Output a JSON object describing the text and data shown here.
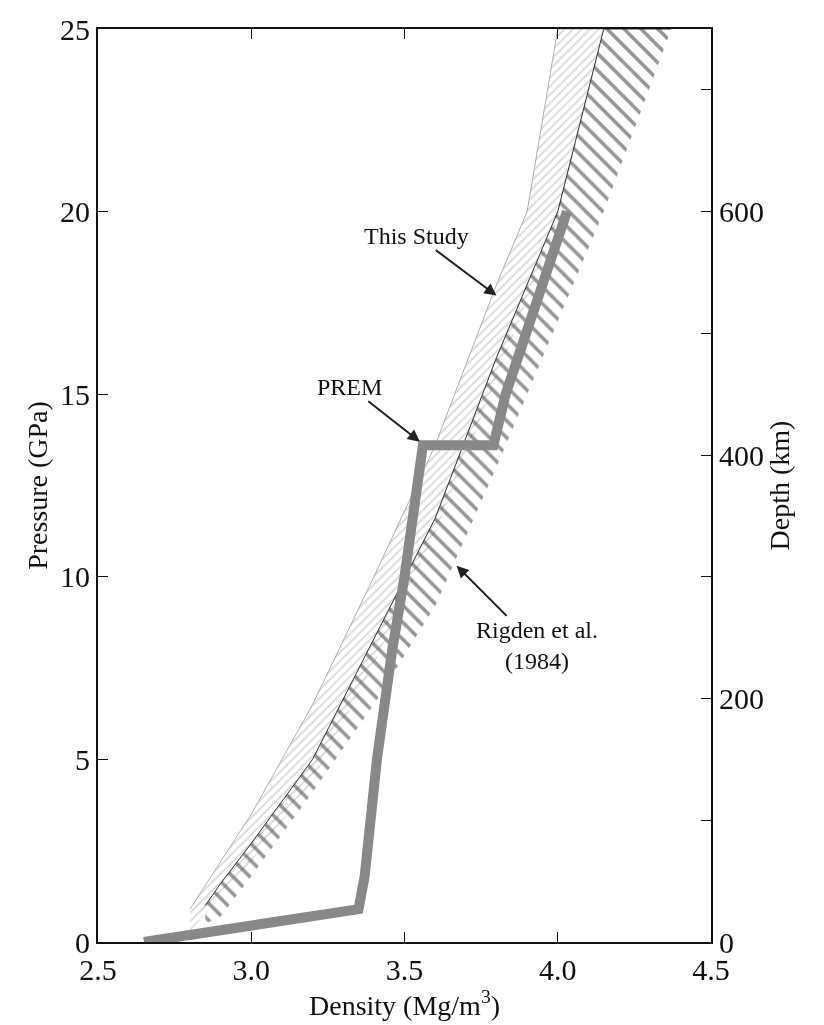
{
  "chart_data": {
    "type": "line",
    "xlabel": "Density (Mg/m$^{3}$)",
    "ylabel": "Pressure (GPa)",
    "y2label": "Depth (km)",
    "xlim": [
      2.5,
      4.5
    ],
    "xticks": [
      2.5,
      {
        "value": 3.0,
        "label": "3.0"
      },
      3.5,
      {
        "value": 4.0,
        "label": "4.0"
      },
      4.5
    ],
    "ylim": [
      0,
      25
    ],
    "yticks": [
      0,
      5,
      10,
      15,
      20,
      25
    ],
    "y2lim": [
      0,
      750
    ],
    "y2ticks": [
      0,
      {
        "value": 100,
        "label": null
      },
      200,
      {
        "value": 300,
        "label": null
      },
      400,
      {
        "value": 500,
        "label": null
      },
      600,
      {
        "value": 700,
        "label": null
      }
    ],
    "marker": "none",
    "line_style": "solid",
    "series": [
      {
        "color": "#b0b0b0",
        "x": [
          2.8,
          3.0,
          3.2,
          3.4,
          3.6,
          3.8,
          3.9,
          4.0,
          4.15
        ],
        "values": [
          0.9,
          3.5,
          6.5,
          10,
          13.6,
          18,
          20,
          25,
          25
        ],
        "lower": [
          0.3,
          2.2,
          4.4,
          7.6,
          11.2,
          15.4,
          17.6,
          19.8,
          25
        ],
        "upper": [
          0.9,
          3.5,
          6.5,
          10,
          13.6,
          18,
          20,
          25,
          25
        ]
      },
      {
        "color": "#303030",
        "x": [
          2.85,
          2.9,
          3.0,
          3.2,
          3.4,
          3.6,
          3.8,
          4.0,
          4.15,
          4.3,
          4.37
        ],
        "values": [
          1.0,
          1.6,
          2.7,
          5,
          8.3,
          11.6,
          16,
          20,
          25,
          25,
          25
        ],
        "lower": [
          0.5,
          0.7,
          1.8,
          4.1,
          6.5,
          9.2,
          13,
          17,
          20,
          23.4,
          25
        ],
        "upper": [
          1.0,
          1.6,
          2.7,
          5,
          8.3,
          11.6,
          16,
          20,
          25,
          25,
          25
        ]
      },
      {
        "color": "#888888",
        "x": [
          2.65,
          3.35,
          3.37,
          3.41,
          3.46,
          3.5,
          3.56,
          3.79,
          3.83,
          4.03
        ],
        "values": [
          0,
          0.9,
          1.8,
          5,
          8,
          10,
          13.6,
          13.6,
          15,
          20
        ]
      }
    ],
    "annotations": [
      {
        "text": "This Study",
        "x": 3.8,
        "y": 17.7
      },
      {
        "text": "PREM",
        "x": 3.55,
        "y": 13.7
      },
      {
        "text": "Rigden et al.\n(1984)",
        "x": 3.67,
        "y": 10.3
      }
    ]
  }
}
